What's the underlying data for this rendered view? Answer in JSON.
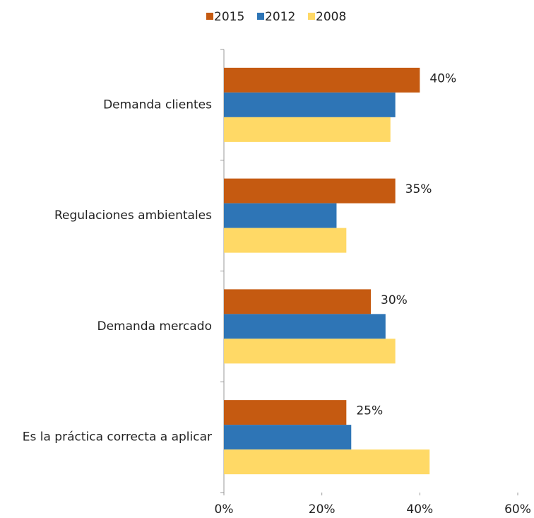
{
  "chart_data": {
    "type": "hbar",
    "categories": [
      "Demanda clientes",
      "Regulaciones ambientales",
      "Demanda mercado",
      "Es la práctica correcta a aplicar"
    ],
    "series": [
      {
        "name": "2015",
        "color": "#c55a11",
        "values": [
          40,
          35,
          30,
          25
        ],
        "value_labels": [
          "40%",
          "35%",
          "30%",
          "25%"
        ]
      },
      {
        "name": "2012",
        "color": "#2e75b6",
        "values": [
          35,
          23,
          33,
          26
        ]
      },
      {
        "name": "2008",
        "color": "#ffd966",
        "values": [
          34,
          25,
          35,
          42
        ]
      }
    ],
    "xlim": [
      0,
      60
    ],
    "xticks": [
      {
        "value": 0,
        "label": "0%"
      },
      {
        "value": 20,
        "label": "20%"
      },
      {
        "value": 40,
        "label": "40%"
      },
      {
        "value": 60,
        "label": "60%"
      }
    ],
    "legend": "top"
  }
}
